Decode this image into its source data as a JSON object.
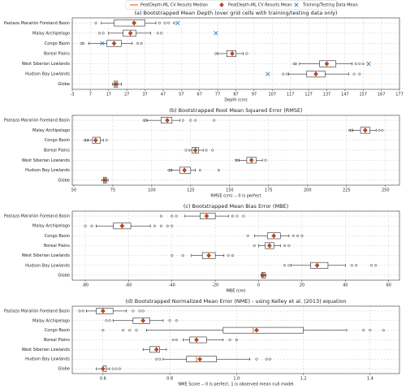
{
  "chart_data": [
    {
      "type": "box",
      "title": "(a) Bootstrapped Mean Depth (over grid cells with training/testing data only)",
      "xlabel": "Depth (cm)",
      "legend_labels": [
        "PeatDepth-ML CV Results Median",
        "PeatDepth-ML CV Results Mean",
        "Training/Testing Data Mean"
      ],
      "median_color": "#e8731e",
      "mean_color": "#c8451c",
      "training_color": "#1f77b4",
      "categories": [
        "Pastaza Marañón Foreland Basin",
        "Malay Archipelago",
        "Congo Basin",
        "Boreal Plains",
        "West Siberian Lowlands",
        "Hudson Bay Lowlands",
        "Globe"
      ],
      "boxes": [
        {
          "whislo": 13,
          "q1": 20,
          "med": 31,
          "q3": 37,
          "whishi": 43,
          "mean": 31,
          "fliers": [
            10,
            45,
            48,
            50,
            53
          ]
        },
        {
          "whislo": 17,
          "q1": 25,
          "med": 29,
          "q3": 32,
          "whishi": 40,
          "mean": 29,
          "fliers": [
            12,
            14,
            44,
            46
          ]
        },
        {
          "whislo": 6,
          "q1": 16,
          "med": 20,
          "q3": 24,
          "whishi": 30,
          "mean": 20,
          "fliers": [
            2,
            3,
            33,
            35
          ]
        },
        {
          "whislo": 77,
          "q1": 82,
          "med": 85,
          "q3": 87,
          "whishi": 91,
          "mean": 85,
          "fliers": [
            76,
            93
          ]
        },
        {
          "whislo": 122,
          "q1": 133,
          "med": 137,
          "q3": 142,
          "whishi": 151,
          "mean": 137,
          "fliers": [
            119,
            120,
            153,
            155,
            157
          ]
        },
        {
          "whislo": 116,
          "q1": 126,
          "med": 131,
          "q3": 136,
          "whishi": 149,
          "mean": 131,
          "fliers": [
            113,
            115,
            152,
            155
          ]
        },
        {
          "whislo": 19,
          "q1": 20,
          "med": 21,
          "q3": 22,
          "whishi": 24,
          "mean": 21,
          "fliers": []
        }
      ],
      "training_means": [
        55,
        76,
        13.5,
        null,
        160,
        104.5,
        null
      ],
      "xlim": [
        -3,
        177
      ],
      "xticks": [
        -3,
        7,
        17,
        27,
        37,
        47,
        57,
        67,
        77,
        87,
        97,
        107,
        117,
        127,
        137,
        147,
        157,
        167,
        177
      ]
    },
    {
      "type": "box",
      "title": "(b) Bootstrapped Root Mean Squared Error (RMSE)",
      "xlabel": "RMSE (cm) -- 0 is perfect",
      "categories": [
        "Pastaza Marañón Foreland Basin",
        "Malay Archipelago",
        "Congo Basin",
        "Boreal Plains",
        "West Siberian Lowlands",
        "Hudson Bay Lowlands",
        "Globe"
      ],
      "boxes": [
        {
          "whislo": 97,
          "q1": 106,
          "med": 110,
          "q3": 113,
          "whishi": 118,
          "mean": 110,
          "fliers": [
            95,
            96,
            120,
            125,
            128,
            140
          ]
        },
        {
          "whislo": 229,
          "q1": 234,
          "med": 237,
          "q3": 240,
          "whishi": 244,
          "mean": 237,
          "fliers": [
            227,
            228,
            246,
            248
          ]
        },
        {
          "whislo": 59,
          "q1": 62,
          "med": 64,
          "q3": 67,
          "whishi": 69,
          "mean": 64,
          "fliers": [
            57,
            58,
            71
          ]
        },
        {
          "whislo": 124,
          "q1": 126,
          "med": 128,
          "q3": 130,
          "whishi": 133,
          "mean": 128,
          "fliers": [
            122,
            135,
            139
          ]
        },
        {
          "whislo": 156,
          "q1": 161,
          "med": 164,
          "q3": 167,
          "whishi": 171,
          "mean": 164,
          "fliers": [
            154,
            155,
            173
          ]
        },
        {
          "whislo": 113,
          "q1": 118,
          "med": 121,
          "q3": 125,
          "whishi": 128,
          "mean": 121,
          "fliers": [
            111,
            112,
            131,
            143
          ]
        },
        {
          "whislo": 68,
          "q1": 69,
          "med": 70,
          "q3": 71,
          "whishi": 72,
          "mean": 70,
          "fliers": []
        }
      ],
      "xlim": [
        49,
        259
      ],
      "xticks": [
        50,
        75,
        100,
        125,
        150,
        175,
        200,
        225,
        250
      ]
    },
    {
      "type": "box",
      "title": "(c) Bootstrapped Mean Bias Error (MBE)",
      "xlabel": "MBE (cm)",
      "categories": [
        "Pastaza Marañón Foreland Basin",
        "Malay Archipelago",
        "Congo Basin",
        "Boreal Plains",
        "West Siberian Lowlands",
        "Hudson Bay Lowlands",
        "Globe"
      ],
      "boxes": [
        {
          "whislo": -34,
          "q1": -27,
          "med": -24,
          "q3": -20,
          "whishi": -14,
          "mean": -24,
          "fliers": [
            -45,
            -40,
            -38,
            -12,
            -10,
            -7
          ]
        },
        {
          "whislo": -75,
          "q1": -67,
          "med": -63,
          "q3": -59,
          "whishi": -50,
          "mean": -63,
          "fliers": [
            -80,
            -77,
            -48,
            -45,
            -42,
            -40
          ]
        },
        {
          "whislo": -2,
          "q1": 4,
          "med": 7,
          "q3": 10,
          "whishi": 14,
          "mean": 7,
          "fliers": [
            -5,
            16,
            18,
            20
          ]
        },
        {
          "whislo": 0,
          "q1": 3,
          "med": 5,
          "q3": 7,
          "whishi": 10,
          "mean": 5,
          "fliers": [
            -2,
            12,
            14
          ]
        },
        {
          "whislo": -31,
          "q1": -26,
          "med": -23,
          "q3": -20,
          "whishi": -16,
          "mean": -23,
          "fliers": [
            -40,
            -35,
            -14,
            -12
          ]
        },
        {
          "whislo": 15,
          "q1": 24,
          "med": 27,
          "q3": 32,
          "whishi": 40,
          "mean": 27,
          "fliers": [
            12,
            14,
            43,
            45,
            52,
            54
          ]
        },
        {
          "whislo": 1,
          "q1": 1.5,
          "med": 2,
          "q3": 3,
          "whishi": 3.5,
          "mean": 2,
          "fliers": []
        }
      ],
      "xlim": [
        -86,
        65
      ],
      "xticks": [
        -80,
        -60,
        -40,
        -20,
        0,
        20,
        40,
        60
      ]
    },
    {
      "type": "box",
      "title": "(d) Bootstrapped Normalized Mean Error (NME) - using Kelley et al. (2013) equation",
      "xlabel": "NME Score -- 0 is perfect, 1 is observed mean null model",
      "categories": [
        "Pastaza Marañón Foreland Basin",
        "Malay Archipelago",
        "Congo Basin",
        "Boreal Plains",
        "West Siberian Lowlands",
        "Hudson Bay Lowlands",
        "Globe"
      ],
      "boxes": [
        {
          "whislo": 0.55,
          "q1": 0.58,
          "med": 0.6,
          "q3": 0.63,
          "whishi": 0.67,
          "mean": 0.6,
          "fliers": [
            0.53,
            0.54,
            0.69,
            0.71,
            0.72
          ]
        },
        {
          "whislo": 0.63,
          "q1": 0.69,
          "med": 0.72,
          "q3": 0.74,
          "whishi": 0.78,
          "mean": 0.72,
          "fliers": [
            0.61,
            0.62,
            0.8,
            0.82
          ]
        },
        {
          "whislo": 0.73,
          "q1": 0.96,
          "med": 1.05,
          "q3": 1.2,
          "whishi": 1.33,
          "mean": 1.06,
          "fliers": [
            0.6,
            0.66,
            0.68,
            0.7,
            1.38,
            1.4,
            1.44
          ]
        },
        {
          "whislo": 0.84,
          "q1": 0.86,
          "med": 0.88,
          "q3": 0.91,
          "whishi": 0.96,
          "mean": 0.88,
          "fliers": [
            0.81,
            0.82,
            0.98,
            1.0
          ]
        },
        {
          "whislo": 0.72,
          "q1": 0.74,
          "med": 0.76,
          "q3": 0.77,
          "whishi": 0.79,
          "mean": 0.76,
          "fliers": []
        },
        {
          "whislo": 0.78,
          "q1": 0.85,
          "med": 0.88,
          "q3": 0.94,
          "whishi": 1.04,
          "mean": 0.89,
          "fliers": [
            0.76,
            0.77,
            1.06,
            1.09,
            1.1
          ]
        },
        {
          "whislo": 0.58,
          "q1": 0.6,
          "med": 0.6,
          "q3": 0.61,
          "whishi": 0.62,
          "mean": 0.6,
          "fliers": [
            0.63,
            0.64,
            0.65
          ]
        }
      ],
      "xlim": [
        0.508,
        1.488
      ],
      "xticks": [
        0.6,
        0.8,
        {
          "value": 1,
          "label": "1.0"
        },
        1.2,
        1.4
      ]
    }
  ]
}
